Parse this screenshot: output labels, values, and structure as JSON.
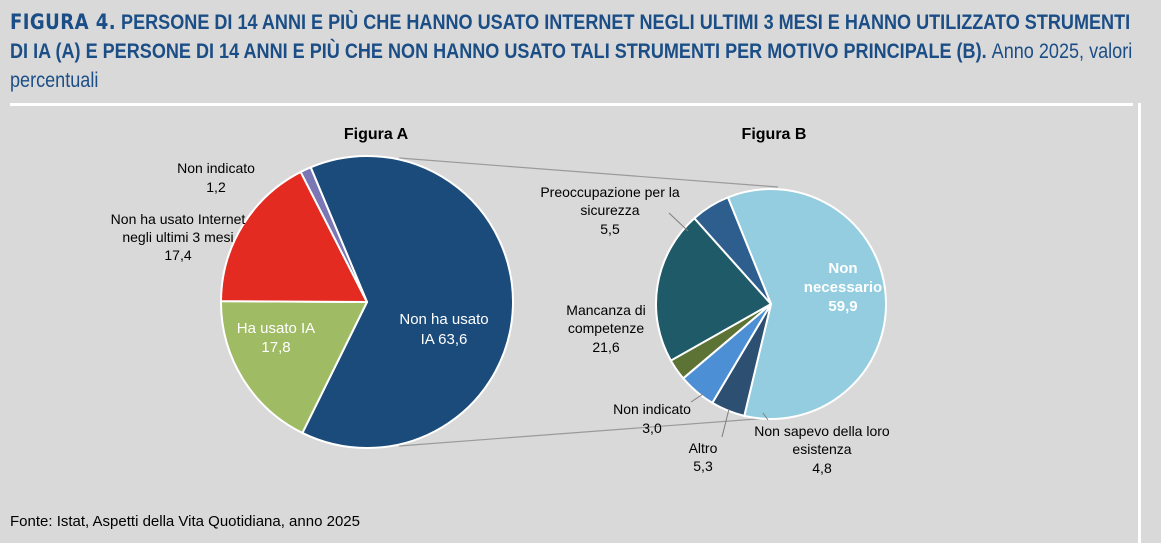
{
  "title": {
    "figure_label": "FIGURA 4.",
    "text": "PERSONE DI 14 ANNI E PIÙ CHE HANNO USATO INTERNET NEGLI ULTIMI 3 MESI E HANNO UTILIZZATO STRUMENTI DI IA (A) E PERSONE DI 14 ANNI E PIÙ CHE NON HANNO USATO TALI STRUMENTI PER MOTIVO PRINCIPALE (B).",
    "year_note": "Anno 2025, valori percentuali"
  },
  "source": "Fonte: Istat, Aspetti della Vita Quotidiana, anno 2025",
  "chart_data": [
    {
      "type": "pie",
      "title": "Figura A",
      "slices": [
        {
          "label": "Non ha usato IA",
          "value": 63.6,
          "value_label": "63,6",
          "color": "#1a4b7a"
        },
        {
          "label": "Ha usato IA",
          "value": 17.8,
          "value_label": "17,8",
          "color": "#9fbb63"
        },
        {
          "label": "Non ha usato Internet negli ultimi 3 mesi",
          "value": 17.4,
          "value_label": "17,4",
          "color": "#e32b22"
        },
        {
          "label": "Non indicato",
          "value": 1.2,
          "value_label": "1,2",
          "color": "#7b76b4"
        }
      ]
    },
    {
      "type": "pie",
      "title": "Figura B",
      "slices": [
        {
          "label": "Non necessario",
          "value": 59.9,
          "value_label": "59,9",
          "color": "#94cde0"
        },
        {
          "label": "Non sapevo della loro esistenza",
          "value": 4.8,
          "value_label": "4,8",
          "color": "#2c4f72"
        },
        {
          "label": "Altro",
          "value": 5.3,
          "value_label": "5,3",
          "color": "#4d8fd4"
        },
        {
          "label": "Non indicato",
          "value": 3.0,
          "value_label": "3,0",
          "color": "#5d7336"
        },
        {
          "label": "Mancanza di competenze",
          "value": 21.6,
          "value_label": "21,6",
          "color": "#1f5a68"
        },
        {
          "label": "Preoccupazione per la sicurezza",
          "value": 5.5,
          "value_label": "5,5",
          "color": "#2d5e8e"
        }
      ]
    }
  ]
}
